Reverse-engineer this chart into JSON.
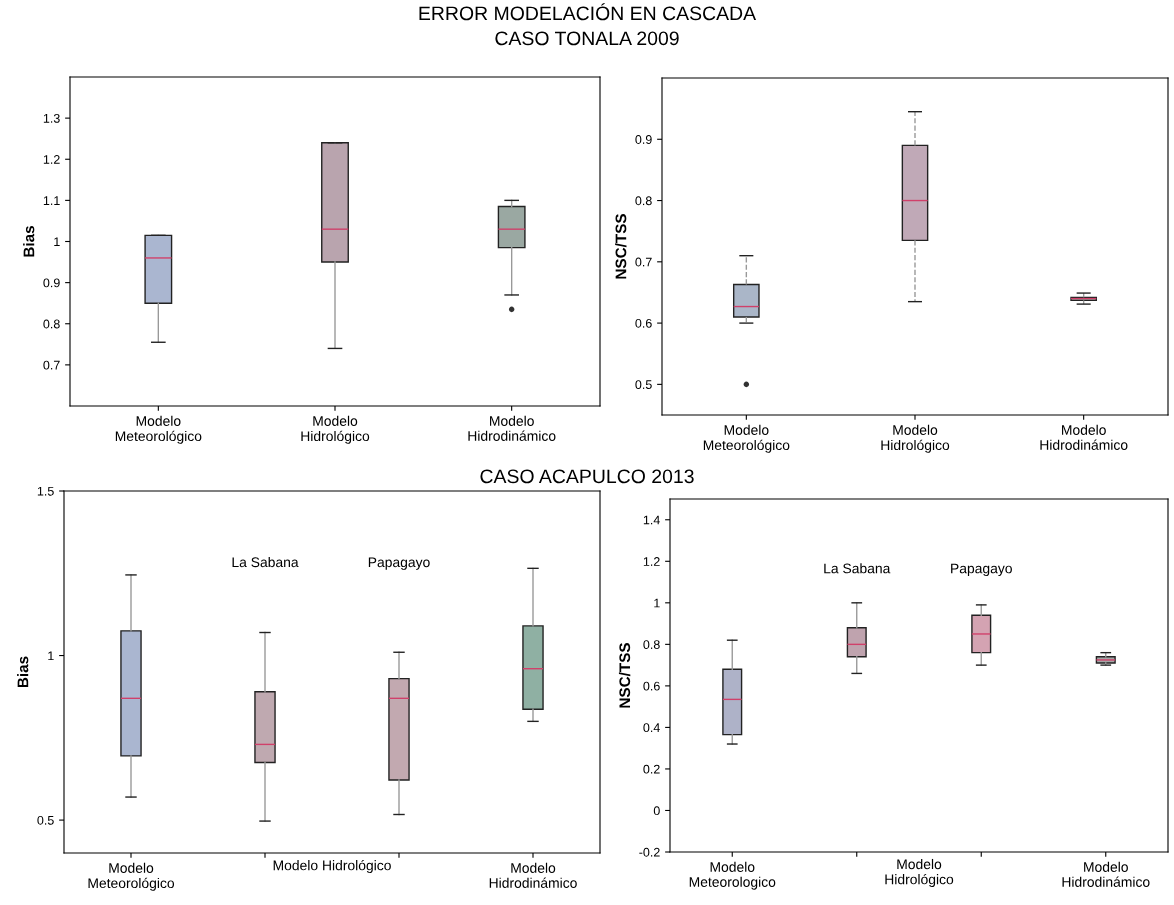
{
  "chart_data": [
    {
      "type": "box",
      "title": "ERROR MODELACIÓN EN CASCADA",
      "subtitle": "CASO TONALA 2009",
      "ylabel": "Bias",
      "categories": [
        "Modelo\nMeteorológico",
        "Modelo\nHidrológico",
        "Modelo\nHidrodinámico"
      ],
      "colors": [
        "#aab6d0",
        "#b9a4ae",
        "#9aa8a2"
      ],
      "boxes": [
        {
          "low": 0.755,
          "q1": 0.85,
          "median": 0.96,
          "q3": 1.015,
          "high": 1.015
        },
        {
          "low": 0.74,
          "q1": 0.95,
          "median": 1.03,
          "q3": 1.24,
          "high": 1.24
        },
        {
          "low": 0.87,
          "q1": 0.985,
          "median": 1.03,
          "q3": 1.085,
          "high": 1.1,
          "outliers": [
            0.835
          ]
        }
      ],
      "ylim": [
        0.6,
        1.4
      ],
      "yticks": [
        0.7,
        0.8,
        0.9,
        1,
        1.1,
        1.2,
        1.3
      ],
      "grid": false,
      "line_style": "solid"
    },
    {
      "type": "box",
      "ylabel": "NSC/TSS",
      "categories": [
        "Modelo\nMeteorológico",
        "Modelo\nHidrológico",
        "Modelo\nHidrodinámico"
      ],
      "colors": [
        "#aab6c8",
        "#c0a9b7",
        "#9aa8a2"
      ],
      "boxes": [
        {
          "low": 0.6,
          "q1": 0.61,
          "median": 0.627,
          "q3": 0.663,
          "high": 0.71,
          "outliers": [
            0.5
          ]
        },
        {
          "low": 0.635,
          "q1": 0.735,
          "median": 0.8,
          "q3": 0.89,
          "high": 0.945
        },
        {
          "low": 0.631,
          "q1": 0.637,
          "median": 0.64,
          "q3": 0.642,
          "high": 0.649
        }
      ],
      "ylim": [
        0.45,
        1.0
      ],
      "yticks": [
        0.5,
        0.6,
        0.7,
        0.8,
        0.9
      ],
      "grid": false,
      "line_style": "dashed"
    },
    {
      "type": "box",
      "title": "CASO ACAPULCO 2013",
      "ylabel": "Bias",
      "categories": [
        "Modelo\nMeteorológico",
        null,
        null,
        "Modelo\nHidrodinámico"
      ],
      "colors": [
        "#aab6d0",
        "#bfa9b0",
        "#c2a9b0",
        "#8fb0a3"
      ],
      "boxes": [
        {
          "low": 0.57,
          "q1": 0.695,
          "median": 0.87,
          "q3": 1.075,
          "high": 1.245
        },
        {
          "low": 0.497,
          "q1": 0.675,
          "median": 0.73,
          "q3": 0.89,
          "high": 1.07
        },
        {
          "low": 0.517,
          "q1": 0.622,
          "median": 0.87,
          "q3": 0.93,
          "high": 1.01
        },
        {
          "low": 0.8,
          "q1": 0.837,
          "median": 0.96,
          "q3": 1.09,
          "high": 1.265
        }
      ],
      "annotations": [
        "La Sabana",
        "Papagayo",
        "Modelo Hidrológico"
      ],
      "ylim": [
        0.4,
        1.5
      ],
      "yticks": [
        0.5,
        1,
        1.5
      ],
      "grid": false,
      "line_style": "solid"
    },
    {
      "type": "box",
      "ylabel": "NSC/TSS",
      "categories": [
        "Modelo\nMeteorologico",
        null,
        null,
        "Modelo\nHidrodinámico"
      ],
      "colors": [
        "#aeb2c8",
        "#bfa3ae",
        "#d4a3b2",
        "#a3a7a6"
      ],
      "boxes": [
        {
          "low": 0.32,
          "q1": 0.365,
          "median": 0.535,
          "q3": 0.68,
          "high": 0.82
        },
        {
          "low": 0.66,
          "q1": 0.74,
          "median": 0.8,
          "q3": 0.88,
          "high": 1.0
        },
        {
          "low": 0.7,
          "q1": 0.76,
          "median": 0.85,
          "q3": 0.94,
          "high": 0.99
        },
        {
          "low": 0.7,
          "q1": 0.71,
          "median": 0.725,
          "q3": 0.74,
          "high": 0.76
        }
      ],
      "annotations": [
        "La Sabana",
        "Papagayo",
        "Modelo\nHidrológico"
      ],
      "ylim": [
        -0.2,
        1.5
      ],
      "yticks": [
        -0.2,
        0,
        0.2,
        0.4,
        0.6,
        0.8,
        1,
        1.2,
        1.4
      ],
      "grid": false,
      "line_style": "solid"
    }
  ]
}
